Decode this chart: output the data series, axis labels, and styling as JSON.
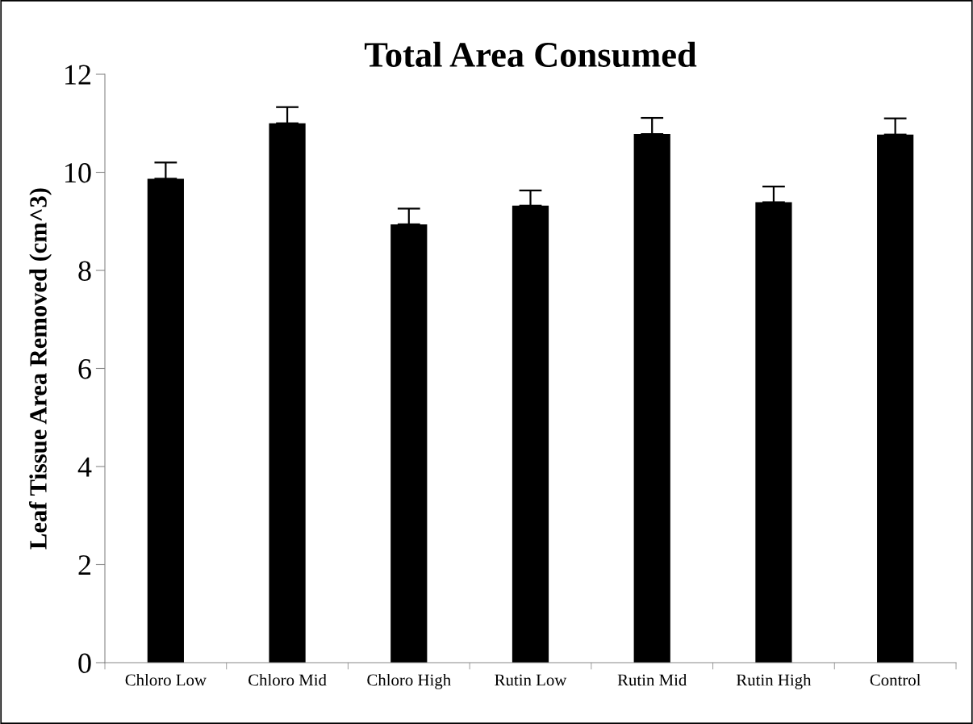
{
  "chart_data": {
    "type": "bar",
    "title": "Total Area Consumed",
    "ylabel": "Leaf Tissue Area Removed (cm^3)",
    "categories": [
      "Chloro Low",
      "Chloro Mid",
      "Chloro High",
      "Rutin Low",
      "Rutin Mid",
      "Rutin High",
      "Control"
    ],
    "values": [
      9.87,
      11.0,
      8.94,
      9.32,
      10.78,
      9.39,
      10.77
    ],
    "errors": [
      [
        9.87,
        10.2
      ],
      [
        11.0,
        11.33
      ],
      [
        8.94,
        9.26
      ],
      [
        9.32,
        9.63
      ],
      [
        10.78,
        11.11
      ],
      [
        9.39,
        9.71
      ],
      [
        10.77,
        11.1
      ]
    ],
    "color": "#000000",
    "ylim": [
      0,
      12
    ],
    "yticks": [
      0,
      2,
      4,
      6,
      8,
      10,
      12
    ],
    "grid": false,
    "legend": false
  }
}
